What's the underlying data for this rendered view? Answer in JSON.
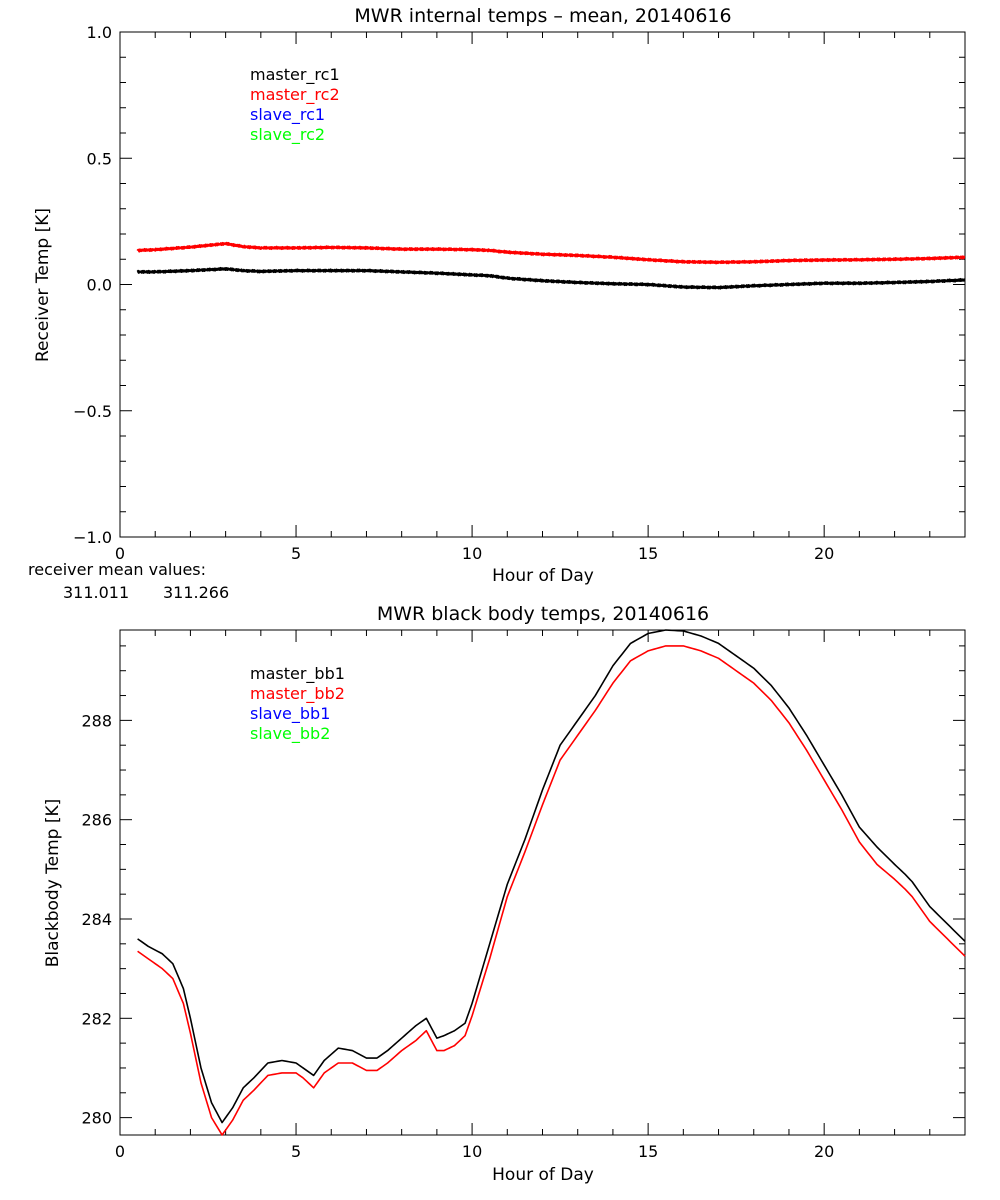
{
  "colors": {
    "axes": "#000000",
    "background": "#ffffff",
    "black_series": "#000000",
    "red_series": "#ff0000",
    "blue_series": "#0000ff",
    "green_series": "#00ff00"
  },
  "chart_data": [
    {
      "type": "line",
      "title": "MWR internal temps – mean, 20140616",
      "xlabel": "Hour of Day",
      "ylabel": "Receiver Temp [K]",
      "xlim": [
        0,
        24
      ],
      "ylim": [
        -1.0,
        1.0
      ],
      "xticks": [
        0,
        5,
        10,
        15,
        20
      ],
      "xtick_labels": [
        "0",
        "5",
        "10",
        "15",
        "20"
      ],
      "yticks": [
        -1.0,
        -0.5,
        0.0,
        0.5,
        1.0
      ],
      "ytick_labels": [
        "−1.0",
        "−0.5",
        "0.0",
        "0.5",
        "1.0"
      ],
      "legend": {
        "placement": "top-left",
        "entries": [
          "master_rc1",
          "master_rc2",
          "slave_rc1",
          "slave_rc2"
        ],
        "colors": [
          "#000000",
          "#ff0000",
          "#0000ff",
          "#00ff00"
        ]
      },
      "series": [
        {
          "name": "master_rc1",
          "color": "#000000",
          "x": [
            0.5,
            1,
            2,
            3,
            3.5,
            4,
            5,
            6,
            7,
            8,
            9,
            10,
            10.5,
            11,
            12,
            13,
            14,
            15,
            16,
            17,
            18,
            19,
            20,
            21,
            22,
            23,
            24
          ],
          "y": [
            0.05,
            0.05,
            0.055,
            0.062,
            0.055,
            0.052,
            0.055,
            0.055,
            0.055,
            0.05,
            0.045,
            0.038,
            0.035,
            0.025,
            0.015,
            0.008,
            0.003,
            0.0,
            -0.01,
            -0.012,
            -0.005,
            0.0,
            0.005,
            0.005,
            0.008,
            0.012,
            0.018
          ]
        },
        {
          "name": "master_rc2",
          "color": "#ff0000",
          "x": [
            0.5,
            1,
            2,
            3,
            3.5,
            4,
            5,
            6,
            7,
            8,
            9,
            10,
            10.5,
            11,
            12,
            13,
            14,
            15,
            16,
            17,
            18,
            19,
            20,
            21,
            22,
            23,
            24
          ],
          "y": [
            0.135,
            0.138,
            0.148,
            0.162,
            0.15,
            0.145,
            0.145,
            0.147,
            0.145,
            0.14,
            0.14,
            0.138,
            0.135,
            0.128,
            0.12,
            0.115,
            0.108,
            0.098,
            0.09,
            0.088,
            0.09,
            0.095,
            0.097,
            0.098,
            0.1,
            0.103,
            0.108
          ]
        }
      ],
      "annotations": {
        "label": "receiver mean values:",
        "values": [
          "311.011",
          "311.266"
        ],
        "value_colors": [
          "#000000",
          "#ff0000"
        ]
      }
    },
    {
      "type": "line",
      "title": "MWR black body temps, 20140616",
      "xlabel": "Hour of Day",
      "ylabel": "Blackbody Temp [K]",
      "xlim": [
        0,
        24
      ],
      "ylim": [
        279.65,
        289.82
      ],
      "xticks": [
        0,
        5,
        10,
        15,
        20
      ],
      "xtick_labels": [
        "0",
        "5",
        "10",
        "15",
        "20"
      ],
      "yticks": [
        280,
        282,
        284,
        286,
        288
      ],
      "ytick_labels": [
        "280",
        "282",
        "284",
        "286",
        "288"
      ],
      "legend": {
        "placement": "top-left",
        "entries": [
          "master_bb1",
          "master_bb2",
          "slave_bb1",
          "slave_bb2"
        ],
        "colors": [
          "#000000",
          "#ff0000",
          "#0000ff",
          "#00ff00"
        ]
      },
      "series": [
        {
          "name": "master_bb1",
          "color": "#000000",
          "x": [
            0.5,
            0.8,
            1.2,
            1.5,
            1.8,
            2.0,
            2.3,
            2.6,
            2.9,
            3.2,
            3.5,
            3.8,
            4.2,
            4.6,
            5.0,
            5.2,
            5.5,
            5.8,
            6.2,
            6.6,
            7.0,
            7.3,
            7.6,
            8.0,
            8.4,
            8.7,
            9.0,
            9.2,
            9.5,
            9.8,
            10.0,
            10.5,
            11.0,
            11.5,
            12.0,
            12.5,
            13.0,
            13.5,
            14.0,
            14.5,
            15.0,
            15.5,
            16.0,
            16.5,
            17.0,
            17.5,
            18.0,
            18.5,
            19.0,
            19.5,
            20.0,
            20.5,
            21.0,
            21.5,
            22.0,
            22.3,
            22.5,
            23.0,
            23.5,
            24.0
          ],
          "y": [
            283.6,
            283.45,
            283.3,
            283.1,
            282.6,
            282.0,
            281.0,
            280.3,
            279.9,
            280.2,
            280.6,
            280.8,
            281.1,
            281.15,
            281.1,
            281.0,
            280.85,
            281.15,
            281.4,
            281.35,
            281.2,
            281.2,
            281.35,
            281.6,
            281.85,
            282.0,
            281.6,
            281.65,
            281.75,
            281.9,
            282.3,
            283.5,
            284.7,
            285.6,
            286.6,
            287.5,
            288.0,
            288.5,
            289.1,
            289.55,
            289.75,
            289.82,
            289.8,
            289.7,
            289.55,
            289.3,
            289.05,
            288.7,
            288.25,
            287.7,
            287.1,
            286.5,
            285.85,
            285.45,
            285.1,
            284.9,
            284.75,
            284.25,
            283.9,
            283.55
          ]
        },
        {
          "name": "master_bb2",
          "color": "#ff0000",
          "x": [
            0.5,
            0.8,
            1.2,
            1.5,
            1.8,
            2.0,
            2.3,
            2.6,
            2.9,
            3.2,
            3.5,
            3.8,
            4.2,
            4.6,
            5.0,
            5.2,
            5.5,
            5.8,
            6.2,
            6.6,
            7.0,
            7.3,
            7.6,
            8.0,
            8.4,
            8.7,
            9.0,
            9.2,
            9.5,
            9.8,
            10.0,
            10.5,
            11.0,
            11.5,
            12.0,
            12.5,
            13.0,
            13.5,
            14.0,
            14.5,
            15.0,
            15.5,
            16.0,
            16.5,
            17.0,
            17.5,
            18.0,
            18.5,
            19.0,
            19.5,
            20.0,
            20.5,
            21.0,
            21.5,
            22.0,
            22.3,
            22.5,
            23.0,
            23.5,
            24.0
          ],
          "y": [
            283.35,
            283.2,
            283.0,
            282.8,
            282.3,
            281.7,
            280.7,
            280.0,
            279.65,
            279.95,
            280.35,
            280.55,
            280.85,
            280.9,
            280.9,
            280.8,
            280.6,
            280.9,
            281.1,
            281.1,
            280.95,
            280.95,
            281.1,
            281.35,
            281.55,
            281.75,
            281.35,
            281.35,
            281.45,
            281.65,
            282.05,
            283.2,
            284.45,
            285.35,
            286.3,
            287.2,
            287.7,
            288.2,
            288.75,
            289.2,
            289.4,
            289.5,
            289.5,
            289.4,
            289.25,
            289.0,
            288.75,
            288.4,
            287.95,
            287.4,
            286.8,
            286.2,
            285.55,
            285.1,
            284.8,
            284.6,
            284.45,
            283.95,
            283.6,
            283.25
          ]
        }
      ]
    }
  ]
}
